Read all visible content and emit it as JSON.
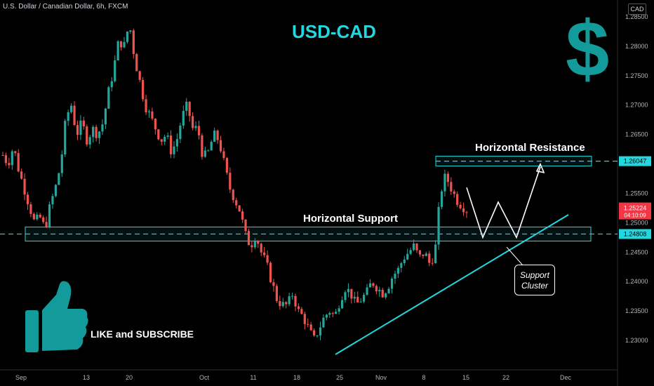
{
  "header": {
    "symbol": "U.S. Dollar / Canadian Dollar, 6h, FXCM"
  },
  "currency_button": "CAD",
  "overlay": {
    "title": "USD-CAD",
    "dollar_sign": "$",
    "resistance_label": "Horizontal Resistance",
    "support_label": "Horizontal Support",
    "cluster_line1": "Support",
    "cluster_line2": "Cluster",
    "like_text": "LIKE and SUBSCRIBE",
    "icons": [
      "dollar-icon",
      "thumbs-up-icon"
    ]
  },
  "colors": {
    "up": "#26a69a",
    "down": "#ef5350",
    "accent": "#22d8e0",
    "price_tag": "#f23645"
  },
  "chart_data": {
    "type": "candlestick",
    "title": "",
    "y_ticks": [
      "1.28500",
      "1.28000",
      "1.27500",
      "1.27000",
      "1.26500",
      "1.26000",
      "1.25500",
      "1.25000",
      "1.24500",
      "1.24000",
      "1.23500",
      "1.23000"
    ],
    "y_tick_values": [
      1.285,
      1.28,
      1.275,
      1.27,
      1.265,
      1.26,
      1.255,
      1.25,
      1.245,
      1.24,
      1.235,
      1.23
    ],
    "ylim": [
      1.2275,
      1.2875
    ],
    "x_ticks": [
      "Sep",
      "13",
      "20",
      "Oct",
      "11",
      "18",
      "25",
      "Nov",
      "8",
      "15",
      "22",
      "Dec"
    ],
    "resistance_level": 1.26047,
    "support_level": 1.24808,
    "current_price": 1.25224,
    "countdown": "04:10:09",
    "resistance_tag": "1.26047",
    "support_tag": "1.24808",
    "price_tag": "1.25224",
    "close_path": [
      1.2615,
      1.26,
      1.263,
      1.259,
      1.256,
      1.253,
      1.25,
      1.251,
      1.249,
      1.253,
      1.256,
      1.26,
      1.268,
      1.27,
      1.265,
      1.267,
      1.264,
      1.266,
      1.265,
      1.267,
      1.272,
      1.276,
      1.281,
      1.28,
      1.284,
      1.278,
      1.274,
      1.27,
      1.268,
      1.266,
      1.264,
      1.265,
      1.262,
      1.264,
      1.268,
      1.27,
      1.266,
      1.266,
      1.261,
      1.262,
      1.265,
      1.264,
      1.26,
      1.256,
      1.254,
      1.252,
      1.248,
      1.246,
      1.248,
      1.245,
      1.243,
      1.24,
      1.237,
      1.236,
      1.236,
      1.238,
      1.235,
      1.234,
      1.232,
      1.23,
      1.232,
      1.234,
      1.235,
      1.234,
      1.237,
      1.239,
      1.238,
      1.236,
      1.237,
      1.238,
      1.24,
      1.239,
      1.238,
      1.239,
      1.241,
      1.242,
      1.244,
      1.245,
      1.246,
      1.244,
      1.245,
      1.243,
      1.245,
      1.255,
      1.258,
      1.256,
      1.254,
      1.253,
      1.25224
    ],
    "forecast_path": [
      1.256,
      1.2475,
      1.2535,
      1.2475,
      1.2595
    ],
    "trendline": [
      1.23,
      1.251
    ]
  }
}
